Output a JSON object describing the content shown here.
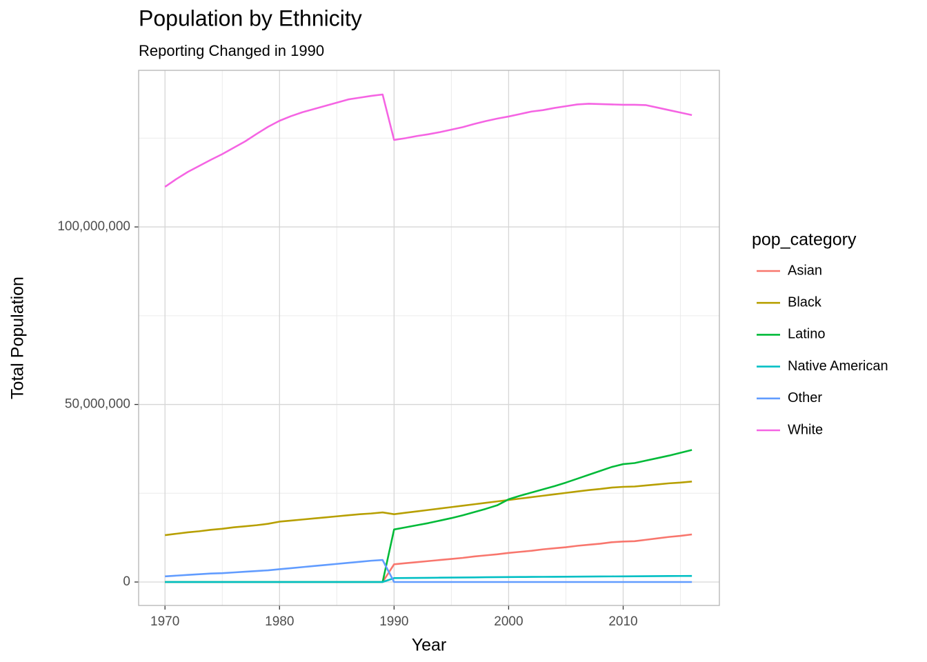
{
  "chart_data": {
    "type": "line",
    "title": "Population by Ethnicity",
    "subtitle": "Reporting Changed in 1990",
    "x_label": "Year",
    "y_label": "Total Population",
    "legend_title": "pop_category",
    "legend_position": "right",
    "grid": true,
    "xlim": [
      1967.7,
      2018.4
    ],
    "ylim": [
      -6600000,
      144100000
    ],
    "xticks": [
      1970,
      1980,
      1990,
      2000,
      2010
    ],
    "xticks_minor": [
      1975,
      1985,
      1995,
      2005,
      2015
    ],
    "yticks": [
      0,
      {
        "value": 50000000,
        "label": "50,000,000"
      },
      {
        "value": 100000000,
        "label": "100,000,000"
      }
    ],
    "yticks_minor": [
      25000000,
      75000000,
      125000000
    ],
    "x": [
      1970,
      1971,
      1972,
      1973,
      1974,
      1975,
      1976,
      1977,
      1978,
      1979,
      1980,
      1981,
      1982,
      1983,
      1984,
      1985,
      1986,
      1987,
      1988,
      1989,
      1990,
      1991,
      1992,
      1993,
      1994,
      1995,
      1996,
      1997,
      1998,
      1999,
      2000,
      2001,
      2002,
      2003,
      2004,
      2005,
      2006,
      2007,
      2008,
      2009,
      2010,
      2011,
      2012,
      2013,
      2014,
      2015,
      2016
    ],
    "series": [
      {
        "name": "Asian",
        "color": "#F8766D",
        "values": [
          0,
          0,
          0,
          0,
          0,
          0,
          0,
          0,
          0,
          0,
          0,
          0,
          0,
          0,
          0,
          0,
          0,
          0,
          0,
          0,
          5000000,
          5300000,
          5600000,
          5900000,
          6200000,
          6500000,
          6800000,
          7200000,
          7500000,
          7800000,
          8200000,
          8500000,
          8800000,
          9200000,
          9500000,
          9800000,
          10200000,
          10500000,
          10800000,
          11200000,
          11400000,
          11500000,
          11900000,
          12300000,
          12700000,
          13000000,
          13400000
        ]
      },
      {
        "name": "Black",
        "color": "#B79F00",
        "values": [
          13200000,
          13600000,
          14000000,
          14300000,
          14700000,
          15000000,
          15400000,
          15700000,
          16000000,
          16400000,
          17000000,
          17300000,
          17600000,
          17900000,
          18200000,
          18500000,
          18800000,
          19100000,
          19300000,
          19600000,
          19100000,
          19500000,
          19900000,
          20300000,
          20700000,
          21100000,
          21500000,
          21900000,
          22300000,
          22700000,
          23100000,
          23500000,
          23900000,
          24300000,
          24700000,
          25100000,
          25500000,
          25900000,
          26200000,
          26600000,
          26800000,
          26900000,
          27200000,
          27500000,
          27800000,
          28000000,
          28300000
        ]
      },
      {
        "name": "Latino",
        "color": "#00BA38",
        "values": [
          0,
          0,
          0,
          0,
          0,
          0,
          0,
          0,
          0,
          0,
          0,
          0,
          0,
          0,
          0,
          0,
          0,
          0,
          0,
          0,
          14800000,
          15400000,
          16000000,
          16600000,
          17300000,
          18000000,
          18800000,
          19700000,
          20600000,
          21600000,
          23300000,
          24300000,
          25200000,
          26100000,
          27000000,
          28000000,
          29100000,
          30200000,
          31300000,
          32400000,
          33200000,
          33500000,
          34200000,
          34900000,
          35600000,
          36400000,
          37200000
        ]
      },
      {
        "name": "Native American",
        "color": "#00BFC4",
        "values": [
          0,
          0,
          0,
          0,
          0,
          0,
          0,
          0,
          0,
          0,
          0,
          0,
          0,
          0,
          0,
          0,
          0,
          0,
          0,
          0,
          1100000,
          1130000,
          1160000,
          1190000,
          1220000,
          1250000,
          1280000,
          1310000,
          1340000,
          1370000,
          1400000,
          1420000,
          1440000,
          1460000,
          1480000,
          1500000,
          1520000,
          1540000,
          1560000,
          1580000,
          1600000,
          1620000,
          1640000,
          1660000,
          1680000,
          1700000,
          1720000
        ]
      },
      {
        "name": "Other",
        "color": "#619CFF",
        "values": [
          1600000,
          1800000,
          2000000,
          2200000,
          2400000,
          2500000,
          2700000,
          2900000,
          3100000,
          3300000,
          3600000,
          3900000,
          4200000,
          4500000,
          4800000,
          5100000,
          5400000,
          5700000,
          6000000,
          6200000,
          0,
          0,
          0,
          0,
          0,
          0,
          0,
          0,
          0,
          0,
          0,
          0,
          0,
          0,
          0,
          0,
          0,
          0,
          0,
          0,
          0,
          0,
          0,
          0,
          0,
          0,
          0
        ]
      },
      {
        "name": "White",
        "color": "#F564E3",
        "values": [
          111300000,
          113500000,
          115500000,
          117200000,
          118900000,
          120500000,
          122300000,
          124100000,
          126200000,
          128200000,
          129900000,
          131200000,
          132300000,
          133200000,
          134100000,
          135000000,
          135900000,
          136400000,
          136900000,
          137300000,
          124500000,
          125000000,
          125600000,
          126100000,
          126700000,
          127400000,
          128100000,
          129000000,
          129800000,
          130500000,
          131100000,
          131800000,
          132500000,
          132900000,
          133500000,
          134000000,
          134500000,
          134700000,
          134600000,
          134500000,
          134400000,
          134400000,
          134300000,
          133600000,
          132900000,
          132200000,
          131500000
        ]
      }
    ]
  }
}
